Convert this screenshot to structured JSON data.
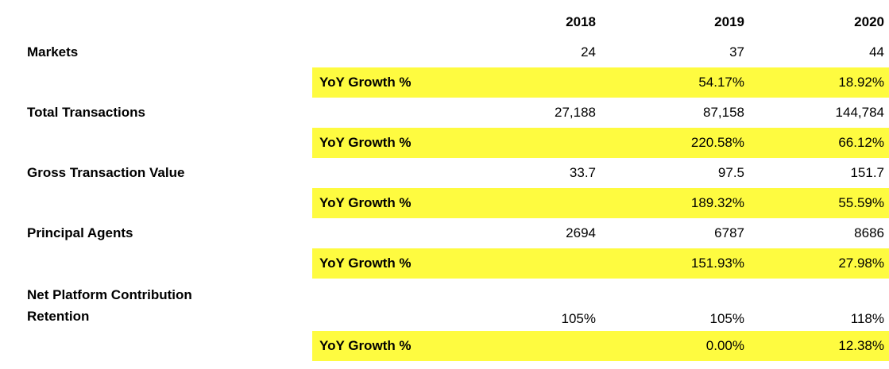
{
  "table": {
    "highlight_color": "#fefb40",
    "yoy_label": "YoY Growth %",
    "years": [
      "2018",
      "2019",
      "2020"
    ],
    "metrics": [
      {
        "label": "Markets",
        "values": [
          "24",
          "37",
          "44"
        ],
        "yoy": [
          "",
          "54.17%",
          "18.92%"
        ]
      },
      {
        "label": "Total Transactions",
        "values": [
          "27,188",
          "87,158",
          "144,784"
        ],
        "yoy": [
          "",
          "220.58%",
          "66.12%"
        ]
      },
      {
        "label": "Gross Transaction Value",
        "values": [
          "33.7",
          "97.5",
          "151.7"
        ],
        "yoy": [
          "",
          "189.32%",
          "55.59%"
        ]
      },
      {
        "label": "Principal Agents",
        "values": [
          "2694",
          "6787",
          "8686"
        ],
        "yoy": [
          "",
          "151.93%",
          "27.98%"
        ]
      },
      {
        "label": "Net Platform Contribution Retention",
        "values": [
          "105%",
          "105%",
          "118%"
        ],
        "yoy": [
          "",
          "0.00%",
          "12.38%"
        ]
      }
    ]
  }
}
